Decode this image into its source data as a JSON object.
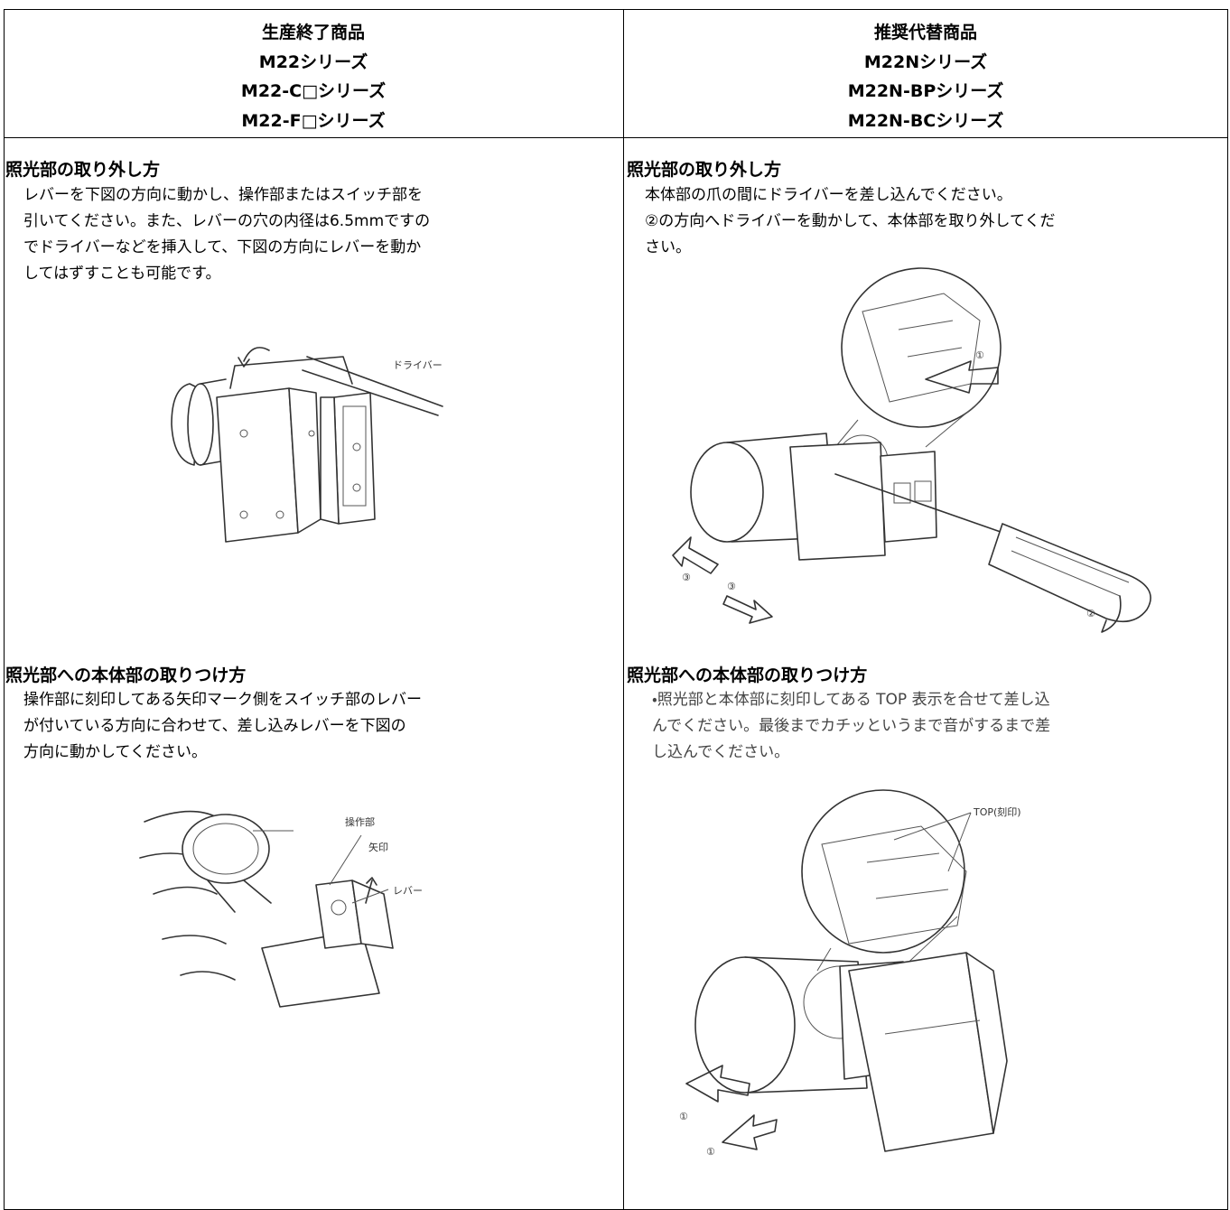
{
  "header": {
    "left": [
      "生産終了商品",
      "M22シリーズ",
      "M22-C□シリーズ",
      "M22-F□シリーズ"
    ],
    "right": [
      "推奨代替商品",
      "M22Nシリーズ",
      "M22N-BPシリーズ",
      "M22N-BCシリーズ"
    ]
  },
  "sections": [
    {
      "left": {
        "title": "照光部の取り外し方",
        "lines": [
          "レバーを下図の方向に動かし、操作部またはスイッチ部を",
          "引いてください。また、レバーの穴の内径は6.5mmですの",
          "でドライバーなどを挿入して、下図の方向にレバーを動か",
          "してはずすことも可能です。"
        ],
        "labels": [
          "ドライバー"
        ]
      },
      "right": {
        "title": "照光部の取り外し方",
        "lines": [
          "本体部の爪の間にドライバーを差し込んでください。",
          "②の方向へドライバーを動かして、本体部を取り外してくだ",
          "さい。"
        ],
        "labels": [
          "①",
          "②",
          "③",
          "③"
        ]
      }
    },
    {
      "left": {
        "title": "照光部への本体部の取りつけ方",
        "lines": [
          "操作部に刻印してある矢印マーク側をスイッチ部のレバー",
          "が付いている方向に合わせて、差し込みレバーを下図の",
          "方向に動かしてください。"
        ],
        "labels": [
          "操作部",
          "矢印",
          "レバー"
        ]
      },
      "right": {
        "title": "照光部への本体部の取りつけ方",
        "lines": [
          "・照光部と本体部に刻印してある TOP 表示を合せて差し込",
          "んでください。最後までカチッというまで音がするまで差",
          "し込んでください。"
        ],
        "labels": [
          "TOP(刻印)",
          "①",
          "①"
        ]
      }
    }
  ]
}
